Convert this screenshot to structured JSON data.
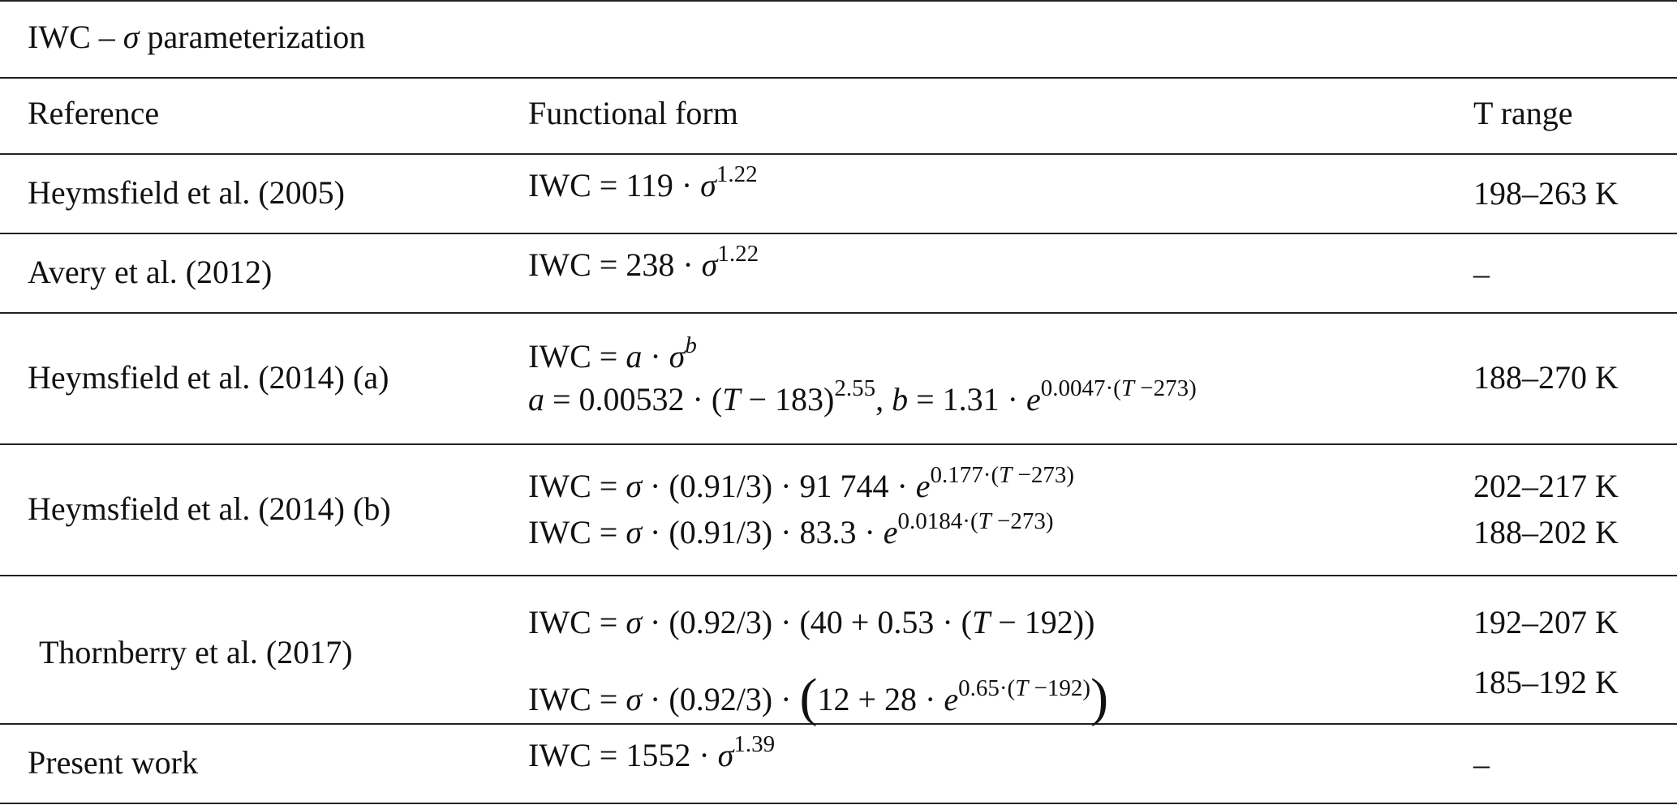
{
  "table": {
    "caption": [
      {
        "t": "IWC – "
      },
      {
        "i": "σ"
      },
      {
        "t": " parameterization"
      }
    ],
    "header": [
      "Reference",
      "Functional form",
      "T range"
    ],
    "rows": [
      {
        "reference": "Heymsfield et al. (2005)",
        "forms": [
          [
            {
              "t": "IWC = 119 · "
            },
            {
              "i": "σ"
            },
            {
              "sup": [
                {
                  "t": "1.22"
                }
              ]
            }
          ]
        ],
        "t_ranges": [
          "198–263 K"
        ]
      },
      {
        "reference": "Avery et al. (2012)",
        "forms": [
          [
            {
              "t": "IWC = 238 · "
            },
            {
              "i": "σ"
            },
            {
              "sup": [
                {
                  "t": "1.22"
                }
              ]
            }
          ]
        ],
        "t_ranges": [
          "–"
        ]
      },
      {
        "reference": "Heymsfield et al. (2014) (a)",
        "forms": [
          [
            {
              "t": "IWC = "
            },
            {
              "i": "a"
            },
            {
              "t": " · "
            },
            {
              "i": "σ"
            },
            {
              "sup": [
                {
                  "i": "b"
                }
              ]
            }
          ],
          [
            {
              "i": "a"
            },
            {
              "t": " = 0.00532 · ("
            },
            {
              "i": "T"
            },
            {
              "t": " − 183)"
            },
            {
              "sup": [
                {
                  "t": "2.55"
                }
              ]
            },
            {
              "t": ", "
            },
            {
              "i": "b"
            },
            {
              "t": " = 1.31 · "
            },
            {
              "i": "e"
            },
            {
              "sup": [
                {
                  "t": "0.0047·("
                },
                {
                  "i": "T"
                },
                {
                  "t": " −273)"
                }
              ]
            }
          ]
        ],
        "t_ranges": [
          "188–270 K"
        ]
      },
      {
        "reference": "Heymsfield et al. (2014) (b)",
        "forms": [
          [
            {
              "t": "IWC = "
            },
            {
              "i": "σ"
            },
            {
              "t": " · (0.91/3) · 91 744 · "
            },
            {
              "i": "e"
            },
            {
              "sup": [
                {
                  "t": "0.177·("
                },
                {
                  "i": "T"
                },
                {
                  "t": " −273)"
                }
              ]
            }
          ],
          [
            {
              "t": "IWC = "
            },
            {
              "i": "σ"
            },
            {
              "t": " · (0.91/3) · 83.3 · "
            },
            {
              "i": "e"
            },
            {
              "sup": [
                {
                  "t": "0.0184·("
                },
                {
                  "i": "T"
                },
                {
                  "t": " −273)"
                }
              ]
            }
          ]
        ],
        "t_ranges": [
          "202–217 K",
          "188–202 K"
        ]
      },
      {
        "reference": "Thornberry et al. (2017)",
        "forms": [
          [
            {
              "t": "IWC = "
            },
            {
              "i": "σ"
            },
            {
              "t": " · (0.92/3) · (40 + 0.53 · ("
            },
            {
              "i": "T"
            },
            {
              "t": " − 192))"
            }
          ],
          [
            {
              "t": "IWC = "
            },
            {
              "i": "σ"
            },
            {
              "t": " · (0.92/3) · "
            },
            {
              "big": "("
            },
            {
              "t": "12 + 28 · "
            },
            {
              "i": "e"
            },
            {
              "sup": [
                {
                  "t": "0.65·("
                },
                {
                  "i": "T"
                },
                {
                  "t": " −192)"
                }
              ]
            },
            {
              "big": ")"
            }
          ]
        ],
        "t_ranges": [
          "192–207 K",
          "185–192 K"
        ]
      },
      {
        "reference": "Present work",
        "forms": [
          [
            {
              "t": "IWC = 1552 · "
            },
            {
              "i": "σ"
            },
            {
              "sup": [
                {
                  "t": "1.39"
                }
              ]
            }
          ]
        ],
        "t_ranges": [
          "–"
        ]
      }
    ]
  }
}
